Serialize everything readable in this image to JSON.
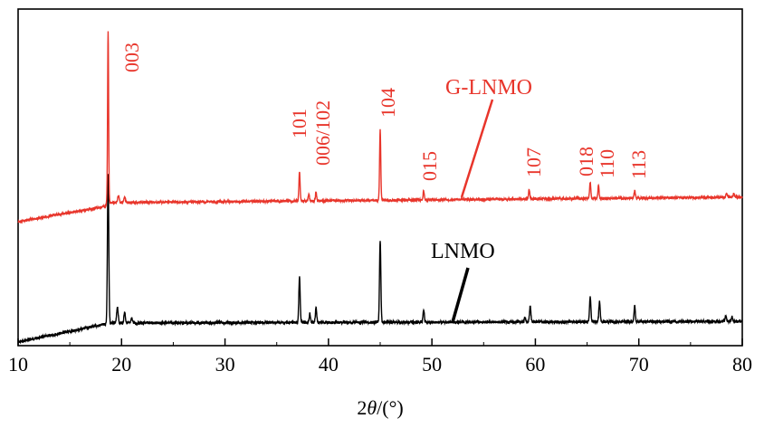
{
  "chart_data": {
    "type": "line",
    "xlabel": "2θ/(°)",
    "xlabel_parts": {
      "pre": "2",
      "theta": "θ",
      "post": "/(°)"
    },
    "ylabel": "",
    "xlim": [
      10,
      80
    ],
    "xticks": [
      10,
      20,
      30,
      40,
      50,
      60,
      70,
      80
    ],
    "y_scale": "intensity (a.u., no ticks)",
    "grid": false,
    "series": [
      {
        "name": "G-LNMO",
        "color": "#e8352b",
        "baseline_offset": 0.55,
        "peaks": [
          {
            "x": 18.7,
            "label": "003"
          },
          {
            "x": 37.2,
            "label": "101"
          },
          {
            "x": 38.6,
            "label": "006/102"
          },
          {
            "x": 45.0,
            "label": "104"
          },
          {
            "x": 49.2,
            "label": "015"
          },
          {
            "x": 59.4,
            "label": "107"
          },
          {
            "x": 65.3,
            "label": "018"
          },
          {
            "x": 66.1,
            "label": "110"
          },
          {
            "x": 69.6,
            "label": "113"
          }
        ]
      },
      {
        "name": "LNMO",
        "color": "#000000",
        "baseline_offset": 0.0
      }
    ]
  }
}
